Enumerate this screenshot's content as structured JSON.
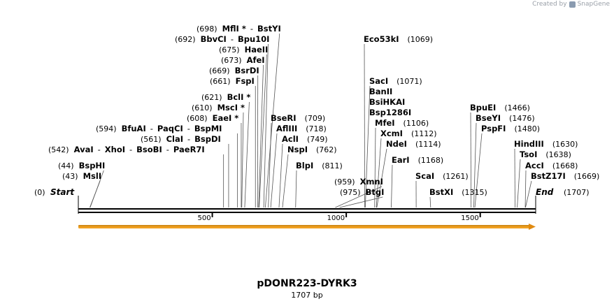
{
  "credit": {
    "prefix": "Created by",
    "brand": "SnapGene"
  },
  "title": "pDONR223-DYRK3",
  "length_label": "1707 bp",
  "ends": {
    "start": "Start",
    "start_pos": "(0)",
    "end": "End",
    "end_pos": "(1707)"
  },
  "colors": {
    "feature_arrow": "#f0a020",
    "backbone": "#000000"
  },
  "sequence_length": 1707,
  "ticks": [
    "500",
    "1000",
    "1500"
  ],
  "enzymes": [
    {
      "name": "BspHI",
      "pos": "(44)"
    },
    {
      "name": "MslI",
      "pos": "(43)"
    },
    {
      "name": "AvaI",
      "pos": "(542)",
      "extra": [
        "XhoI",
        "BsoBI",
        "PaeR7I"
      ]
    },
    {
      "name": "ClaI",
      "pos": "(561)",
      "extra": [
        "BspDI"
      ]
    },
    {
      "name": "BfuAI",
      "pos": "(594)",
      "extra": [
        "PaqCI",
        "BspMI"
      ]
    },
    {
      "name": "EaeI *",
      "pos": "(608)"
    },
    {
      "name": "MscI *",
      "pos": "(610)"
    },
    {
      "name": "BclI *",
      "pos": "(621)"
    },
    {
      "name": "FspI",
      "pos": "(661)"
    },
    {
      "name": "BsrDI",
      "pos": "(669)"
    },
    {
      "name": "AfeI",
      "pos": "(673)"
    },
    {
      "name": "HaeII",
      "pos": "(675)"
    },
    {
      "name": "BbvCI",
      "pos": "(692)",
      "extra": [
        "Bpu10I"
      ]
    },
    {
      "name": "MflI *",
      "pos": "(698)",
      "extra": [
        "BstYI"
      ]
    },
    {
      "name": "BseRI",
      "pos": "(709)"
    },
    {
      "name": "AflIII",
      "pos": "(718)"
    },
    {
      "name": "AclI",
      "pos": "(749)"
    },
    {
      "name": "NspI",
      "pos": "(762)"
    },
    {
      "name": "BlpI",
      "pos": "(811)"
    },
    {
      "name": "XmnI",
      "pos": "(959)"
    },
    {
      "name": "BtgI",
      "pos": "(975)"
    },
    {
      "name": "Eco53kI",
      "pos": "(1069)"
    },
    {
      "name": "SacI",
      "pos": "(1071)"
    },
    {
      "name": "BanII",
      "pos": ""
    },
    {
      "name": "BsiHKAI",
      "pos": ""
    },
    {
      "name": "Bsp1286I",
      "pos": ""
    },
    {
      "name": "MfeI",
      "pos": "(1106)"
    },
    {
      "name": "XcmI",
      "pos": "(1112)"
    },
    {
      "name": "NdeI",
      "pos": "(1114)"
    },
    {
      "name": "EarI",
      "pos": "(1168)"
    },
    {
      "name": "ScaI",
      "pos": "(1261)"
    },
    {
      "name": "BstXI",
      "pos": "(1315)"
    },
    {
      "name": "BpuEI",
      "pos": "(1466)"
    },
    {
      "name": "BseYI",
      "pos": "(1476)"
    },
    {
      "name": "PspFI",
      "pos": "(1480)"
    },
    {
      "name": "HindIII",
      "pos": "(1630)"
    },
    {
      "name": "TsoI",
      "pos": "(1638)"
    },
    {
      "name": "AccI",
      "pos": "(1668)"
    },
    {
      "name": "BstZ17I",
      "pos": "(1669)"
    }
  ]
}
